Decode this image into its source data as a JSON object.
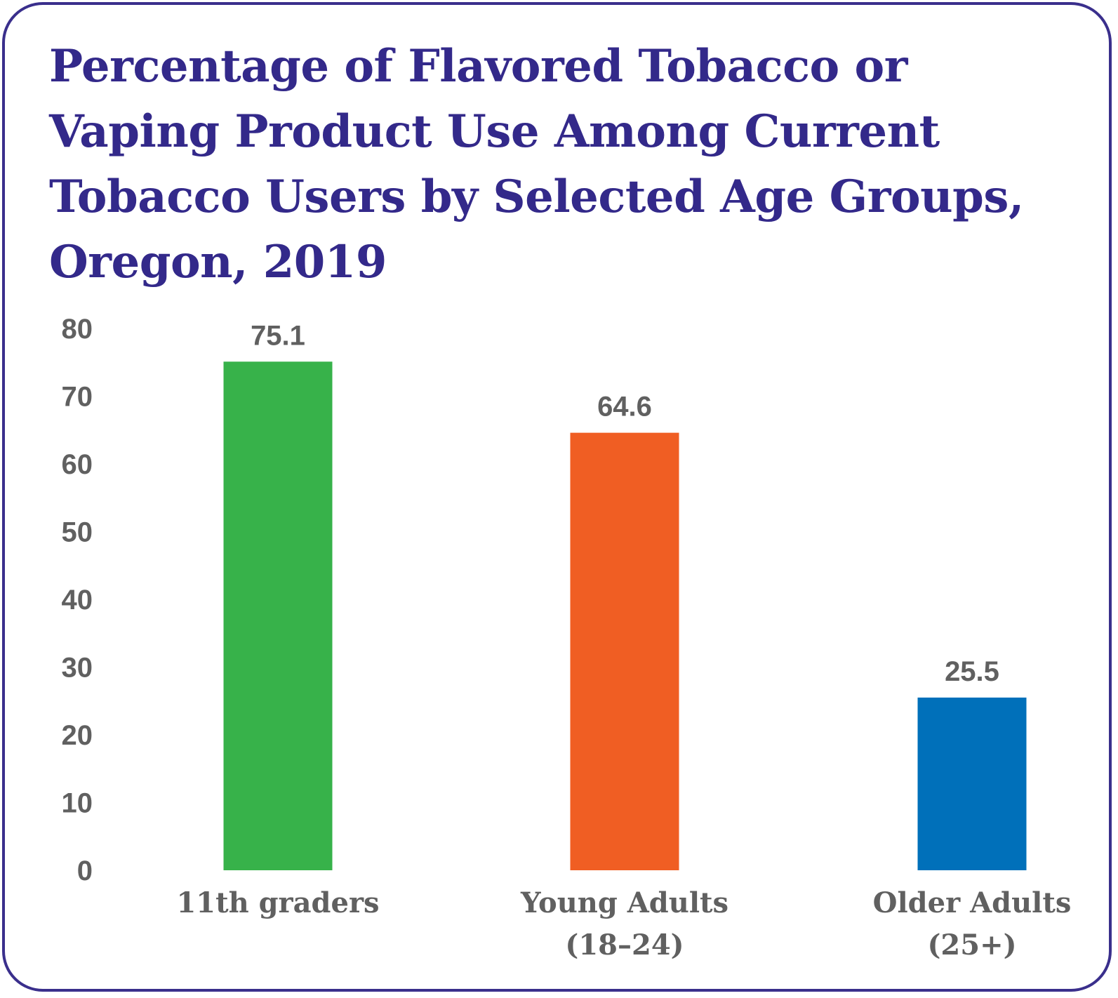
{
  "title": {
    "lines": [
      "Percentage of Flavored Tobacco or",
      "Vaping Product Use Among Current",
      "Tobacco Users by Selected Age Groups,",
      "Oregon, 2019"
    ]
  },
  "chart_data": {
    "type": "bar",
    "title": "Percentage of Flavored Tobacco or Vaping Product Use Among Current Tobacco Users by Selected Age Groups, Oregon, 2019",
    "categories": [
      [
        "11th graders"
      ],
      [
        "Young Adults",
        "(18–24)"
      ],
      [
        "Older Adults",
        "(25+)"
      ]
    ],
    "values": [
      75.1,
      64.6,
      25.5
    ],
    "value_labels": [
      "75.1",
      "64.6",
      "25.5"
    ],
    "colors": [
      "#37b24a",
      "#f05e23",
      "#0070ba"
    ],
    "ylim": [
      0,
      80
    ],
    "yticks": [
      0,
      10,
      20,
      30,
      40,
      50,
      60,
      70,
      80
    ],
    "grid": false,
    "legend": "none",
    "xlabel": "",
    "ylabel": ""
  }
}
